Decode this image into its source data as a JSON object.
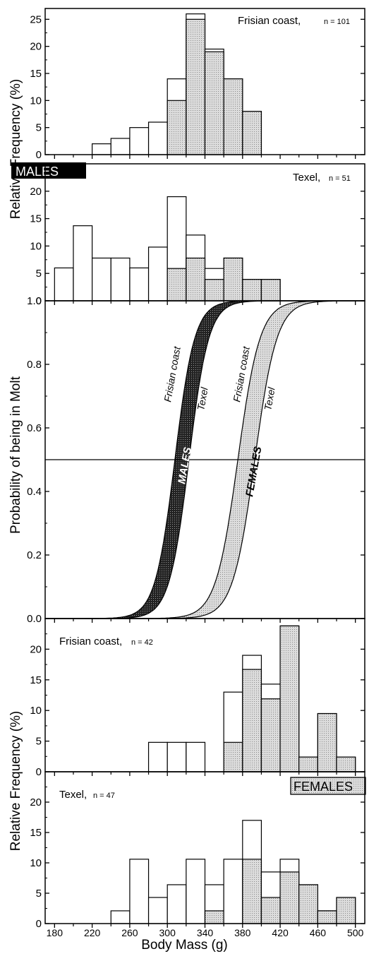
{
  "chart_data": [
    {
      "type": "bar",
      "panel": "males-frisian",
      "label": "Frisian coast,",
      "n_text": "n = 101",
      "badge": "MALES",
      "ylim": [
        0,
        27
      ],
      "yticks": [
        0,
        5,
        10,
        15,
        20,
        25
      ],
      "bins": [
        180,
        200,
        220,
        240,
        260,
        280,
        300,
        320,
        340,
        360,
        380,
        400,
        420,
        440,
        460,
        480,
        500
      ],
      "total": [
        0,
        0,
        2,
        3,
        5,
        6,
        14,
        26,
        19.5,
        14,
        8,
        0,
        0,
        0,
        0,
        0
      ],
      "molting": [
        0,
        0,
        0,
        0,
        0,
        0,
        10,
        25,
        19,
        14,
        8,
        0,
        0,
        0,
        0,
        0
      ]
    },
    {
      "type": "bar",
      "panel": "males-texel",
      "label": "Texel,",
      "n_text": "n = 51",
      "ylim": [
        0,
        25
      ],
      "yticks": [
        0,
        5,
        10,
        15,
        20
      ],
      "bins": [
        180,
        200,
        220,
        240,
        260,
        280,
        300,
        320,
        340,
        360,
        380,
        400,
        420,
        440,
        460,
        480,
        500
      ],
      "total": [
        6,
        13.7,
        7.8,
        7.8,
        6,
        9.8,
        19,
        12,
        5.9,
        7.8,
        3.9,
        3.9,
        0,
        0,
        0,
        0
      ],
      "molting": [
        0,
        0,
        0,
        0,
        0,
        0,
        5.9,
        7.8,
        3.9,
        7.8,
        3.9,
        3.9,
        0,
        0,
        0,
        0
      ]
    },
    {
      "type": "line",
      "panel": "probability",
      "ylabel": "Probability of being in Molt",
      "ylim": [
        0,
        1
      ],
      "yticks": [
        0.0,
        0.2,
        0.4,
        0.6,
        0.8,
        1.0
      ],
      "hline": 0.5,
      "series": [
        {
          "group": "MALES",
          "name": "Frisian coast",
          "x50": 308,
          "slope": 0.095
        },
        {
          "group": "MALES",
          "name": "Texel",
          "x50": 323,
          "slope": 0.095
        },
        {
          "group": "FEMALES",
          "name": "Frisian coast",
          "x50": 375,
          "slope": 0.085
        },
        {
          "group": "FEMALES",
          "name": "Texel",
          "x50": 393,
          "slope": 0.085
        }
      ]
    },
    {
      "type": "bar",
      "panel": "females-frisian",
      "label": "Frisian coast,",
      "n_text": "n = 42",
      "ylim": [
        0,
        25
      ],
      "yticks": [
        0,
        5,
        10,
        15,
        20
      ],
      "bins": [
        180,
        200,
        220,
        240,
        260,
        280,
        300,
        320,
        340,
        360,
        380,
        400,
        420,
        440,
        460,
        480,
        500
      ],
      "total": [
        0,
        0,
        0,
        0,
        0,
        4.8,
        4.8,
        4.8,
        0,
        13,
        19,
        14.3,
        23.8,
        2.4,
        9.5,
        2.4
      ],
      "molting": [
        0,
        0,
        0,
        0,
        0,
        0,
        0,
        0,
        0,
        4.8,
        16.7,
        11.9,
        23.8,
        2.4,
        9.5,
        2.4
      ]
    },
    {
      "type": "bar",
      "panel": "females-texel",
      "label": "Texel,",
      "n_text": "n = 47",
      "badge": "FEMALES",
      "ylim": [
        0,
        25
      ],
      "yticks": [
        0,
        5,
        10,
        15,
        20
      ],
      "xticks": [
        180,
        220,
        260,
        300,
        340,
        380,
        420,
        460,
        500
      ],
      "bins": [
        180,
        200,
        220,
        240,
        260,
        280,
        300,
        320,
        340,
        360,
        380,
        400,
        420,
        440,
        460,
        480,
        500
      ],
      "total": [
        0,
        0,
        0,
        2.1,
        10.6,
        4.3,
        6.4,
        10.6,
        6.4,
        10.6,
        17,
        8.5,
        10.6,
        6.4,
        2.1,
        4.3
      ],
      "molting": [
        0,
        0,
        0,
        0,
        0,
        0,
        0,
        0,
        2.1,
        0,
        10.6,
        4.3,
        8.5,
        6.4,
        2.1,
        4.3
      ]
    }
  ],
  "labels": {
    "ylabel_histogram": "Relative Frequency (%)",
    "ylabel_probability": "Probability of being in Molt",
    "xlabel": "Body Mass (g)"
  },
  "colors": {
    "molting_fill": "#cfcfcf",
    "males_band": "#2a2a2a",
    "females_band": "#d4d4d4"
  }
}
